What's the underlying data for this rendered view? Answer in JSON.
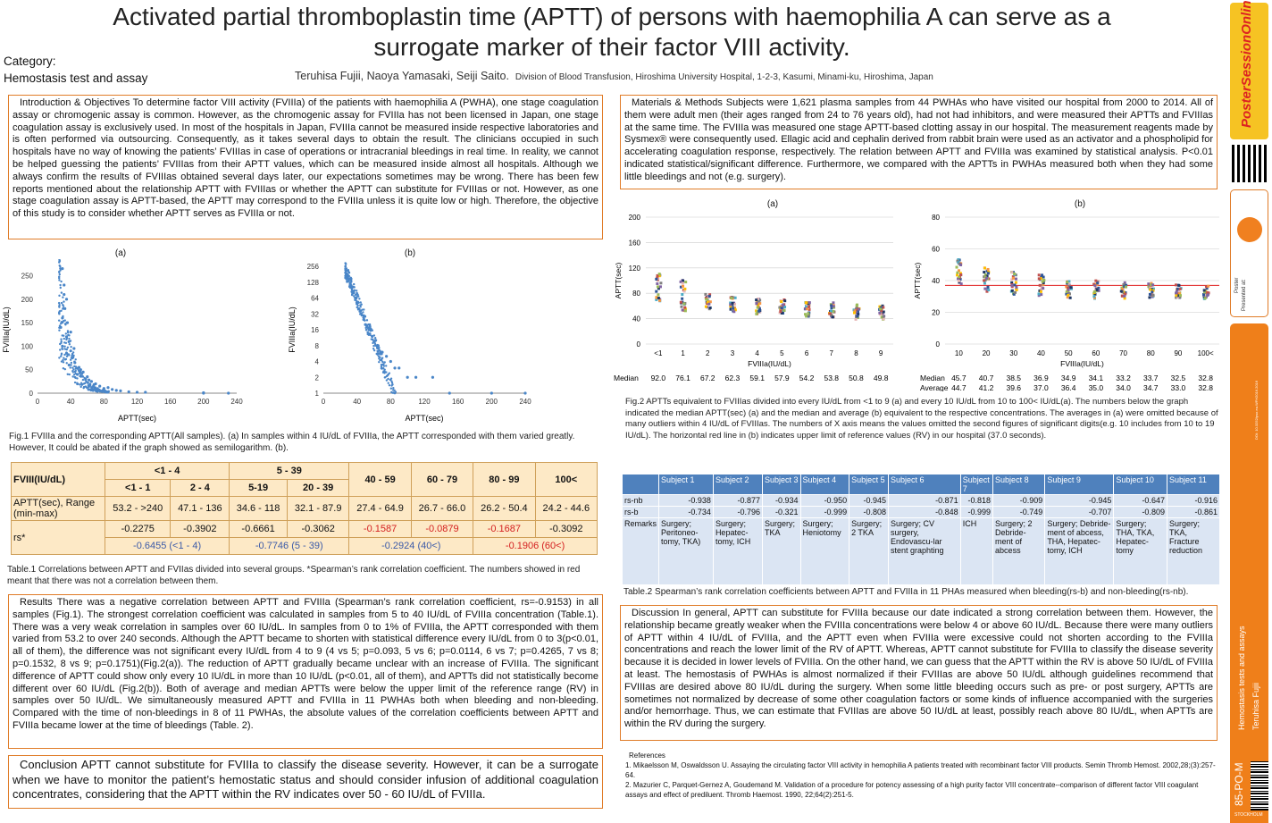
{
  "header": {
    "title": "Activated partial thromboplastin time (APTT) of persons with haemophilia A can serve as a surrogate marker of their factor VIII activity.",
    "authors": "Teruhisa Fujii, Naoya Yamasaki, Seiji Saito.",
    "affiliation": "Division of Blood Transfusion, Hiroshima University Hospital, 1-2-3, Kasumi, Minami-ku, Hiroshima, Japan",
    "category_label": "Category:",
    "category": "Hemostasis test and assay"
  },
  "sections": {
    "intro": "Introduction & Objectives   To determine factor VIII activity (FVIIIa) of the patients with haemophilia A (PWHA), one stage coagulation assay or chromogenic assay is common. However, as the chromogenic assay for FVIIIa has not been licensed in Japan, one stage coagulation assay is exclusively used. In most of the hospitals in Japan, FVIIIa cannot be measured inside respective laboratories and is often performed via outsourcing. Consequently, as it takes several days to obtain the result. The clinicians occupied in such hospitals have no way of knowing the patients’ FVIIIas in case of operations or intracranial bleedings in real time. In reality, we cannot be helped guessing the patients’ FVIIIas from their APTT values, which can be measured inside almost all hospitals. Although we always confirm the results of FVIIIas obtained several days later, our expectations sometimes may be wrong. There has been few reports mentioned about the relationship APTT with FVIIIas or whether the APTT can substitute for FVIIIas or not. However, as one stage coagulation assay is APTT-based, the APTT may correspond to the FVIIIa unless it is quite low or high. Therefore, the objective of this study is to consider whether APTT serves as FVIIIa or not.",
    "methods": "Materials & Methods   Subjects were 1,621 plasma samples from 44 PWHAs who have visited our hospital from 2000 to 2014. All of them were adult men (their ages ranged from 24 to 76 years old), had not had inhibitors, and were measured their APTTs and FVIIIas at the same time. The FVIIIa was measured one stage APTT-based clotting assay in our hospital. The measurement reagents made by Sysmex® were consequently used. Ellagic acid and cephalin derived from rabbit brain were used as an activator and a phospholipid for accelerating coagulation response, respectively. The relation between APTT and FVIIIa was examined by statistical analysis. P<0.01 indicated statistical/significant difference. Furthermore, we compared with the APTTs in PWHAs measured both when they had some little bleedings and not (e.g. surgery).",
    "results": "Results   There was a negative correlation between APTT and FVIIIa (Spearman’s rank correlation coefficient, rs=-0.9153) in all samples (Fig.1). The strongest correlation coefficient was calculated in samples from 5 to 40 IU/dL of FVIIIa concentration (Table.1). There was a very weak correlation in samples over 60 IU/dL. In samples from 0 to 1% of FVIIIa, the APTT corresponded with them varied from 53.2 to over 240 seconds. Although the APTT became to shorten with statistical difference every IU/dL from 0 to 3(p<0.01, all of them), the difference was not significant every IU/dL from 4 to 9 (4 vs 5; p=0.093, 5 vs 6; p=0.0114, 6 vs 7; p=0.4265, 7 vs 8; p=0.1532, 8 vs 9; p=0.1751)(Fig.2(a)). The reduction of APTT gradually became unclear with an increase of FVIIIa. The significant difference of APTT could show only every 10 IU/dL in more than 10 IU/dL (p<0.01, all of them), and APTTs did not statistically become different over 60 IU/dL (Fig.2(b)). Both of average and median APTTs were below the upper limit of the reference range (RV) in samples over 50 IU/dL. We simultaneously measured APTT and FVIIIa in 11 PWHAs both when bleeding and non-bleeding. Compared with the time of non-bleedings in 8 of 11 PWHAs, the absolute values of the correlation coefficients between APTT and FVIIIa became lower at the time of bleedings (Table. 2).",
    "conclusion": "Conclusion   APTT cannot substitute for FVIIIa to classify the disease severity. However, it can be a surrogate when we have to monitor the patient’s hemostatic status and should consider infusion of additional coagulation concentrates, considering that the APTT within the RV indicates over 50 - 60 IU/dL of FVIIIa.",
    "discussion": "Discussion   In general, APTT can substitute for FVIIIa because our date indicated a strong correlation between them. However, the relationship became greatly weaker when the FVIIIa concentrations were below 4 or above 60 IU/dL. Because there were many outliers of APTT within 4 IU/dL of FVIIIa, and the APTT even when FVIIIa were excessive could not shorten according to the FVIIIa concentrations and reach the lower limit of the RV of APTT. Whereas, APTT cannot substitute for FVIIIa to classify the disease severity because it is decided in lower levels of FVIIIa. On the other hand, we can guess that the APTT within the RV is above 50 IU/dL of FVIIIa at least. The hemostasis of PWHAs is almost normalized if their FVIIIas are above 50 IU/dL although guidelines recommend that FVIIIas are desired above 80 IU/dL during the surgery. When some little bleeding occurs such as pre- or post surgery, APTTs are sometimes not normalized by decrease of some other coagulation factors or some kinds of influence accompanied with the surgeries and/or hemorrhage. Thus, we can estimate that FVIIIas are above 50 IU/dL at least, possibly reach above 80 IU/dL, when APTTs are within the RV during the surgery."
  },
  "captions": {
    "fig1": "Fig.1   FVIIIa and the corresponding APTT(All samples). (a)  In samples within 4 IU/dL of FVIIIa, the APTT corresponded with them varied greatly. However, It could be abated if the graph showed as semilogarithm. (b).",
    "table1": "Table.1      Correlations between APTT and FVIIas divided into several groups. *Spearman’s rank correlation coefficient. The numbers showed in red meant that there was not a correlation between them.",
    "fig2": "Fig.2   APTTs equivalent to FVIIIas divided into every IU/dL from <1 to 9 (a) and every 10 IU/dL from 10 to 100< IU/dL(a). The numbers below the graph indicated the median APTT(sec) (a) and the median and average (b) equivalent to the respective concentrations. The averages in (a) were omitted because of many outliers within 4 IU/dL of FVIIIas. The numbers of X axis means the values omitted the second figures of significant digits(e.g. 10 includes from 10 to 19 IU/dL). The horizontal red line in (b) indicates upper limit of reference values (RV) in our hospital (37.0 seconds).",
    "table2": "Table.2  Spearman’s rank correlation coefficients between APTT and FVIIIa in 11 PHAs measured when bleeding(rs-b) and non-bleeding(rs-nb)."
  },
  "references": {
    "title": "References",
    "items": [
      "1.  Mikaelsson M, Oswaldsson U. Assaying the circulating factor VIII activity in hemophilia A patients treated with recombinant factor VIII products. Semin Thromb Hemost. 2002,28;(3):257-64.",
      "2.  Mazurier C, Parquet-Gernez A, Goudemand M. Validation of a procedure for potency assessing of a high purity factor VIII concentrate--comparison of different factor VIII coagulant assays and effect of prediluent. Thromb Haemost. 1990, 22;64(2):251-5."
    ]
  },
  "table1": {
    "header": [
      "FVIII(IU/dL)",
      "<1 - 4",
      "5 - 39",
      "40 - 59",
      "60 - 79",
      "80 - 99",
      "100<"
    ],
    "subheader": [
      "<1 - 1",
      "2 - 4",
      "5-19",
      "20 - 39"
    ],
    "range_label": "APTT(sec), Range (min-max)",
    "ranges": [
      "53.2 - >240",
      "47.1 - 136",
      "34.6 - 118",
      "32.1 - 87.9",
      "27.4 - 64.9",
      "26.7 - 66.0",
      "26.2 - 50.4",
      "24.2 - 44.6"
    ],
    "rs_label": "rs*",
    "rs": [
      "-0.2275",
      "-0.3902",
      "-0.6661",
      "-0.3062",
      "-0.1587",
      "-0.0879",
      "-0.1687",
      "-0.3092"
    ],
    "group_rs": [
      "-0.6455 (<1 - 4)",
      "-0.7746 (5 - 39)",
      "-0.2924 (40<)",
      "-0.1906 (60<)"
    ]
  },
  "table2": {
    "subjects": [
      "Subject 1",
      "Subject 2",
      "Subject 3",
      "Subject 4",
      "Subject 5",
      "Subject 6",
      "Subject 7",
      "Subject 8",
      "Subject 9",
      "Subject 10",
      "Subject 11"
    ],
    "rs_nb_label": "rs-nb",
    "rs_nb": [
      "-0.938",
      "-0.877",
      "-0.934",
      "-0.950",
      "-0.945",
      "-0.871",
      "-0.818",
      "-0.909",
      "-0.945",
      "-0.647",
      "-0.916"
    ],
    "rs_b_label": "rs-b",
    "rs_b": [
      "-0.734",
      "-0.796",
      "-0.321",
      "-0.999",
      "-0.808",
      "-0.848",
      "-0.999",
      "-0.749",
      "-0.707",
      "-0.809",
      "-0.861"
    ],
    "remarks_label": "Remarks",
    "remarks": [
      "Surgery; Peritoneo-tomy, TKA)",
      "Surgery; Hepatec-tomy, ICH",
      "Surgery; TKA",
      "Surgery; Heniotomy",
      "Surgery; 2 TKA",
      "Surgery; CV surgery, Endovascu-lar stent graphting",
      "ICH",
      "Surgery; 2 Debride-ment of abcess",
      "Surgery; Debride-ment of abcess, THA, Hepatec-tomy, ICH",
      "Surgery; THA, TKA, Hepatec-tomy",
      "Surgery; TKA, Fracture reduction"
    ]
  },
  "sidebar": {
    "logo": "PosterSessionOnline.com",
    "presented": "Presented at:",
    "poster": "Poster",
    "topic": "Hemostasis tests and assays",
    "author": "Teruhisa Fujii",
    "code": "85-PO-M",
    "doi": "DOI: 10.3252/pso.eu.WFH2016.2016",
    "footer": "STOCKHOLM"
  },
  "chart_data": [
    {
      "type": "scatter",
      "panel": "(a)",
      "xlabel": "APTT(sec)",
      "ylabel": "FVIIIa(IU/dL)",
      "xlim": [
        0,
        240
      ],
      "ylim": [
        0,
        270
      ],
      "xticks": [
        "0",
        "40",
        "80",
        "120",
        "160",
        "200",
        "240"
      ],
      "yticks": [
        "0",
        "50",
        "100",
        "150",
        "200",
        "250"
      ],
      "points": [
        [
          30,
          265
        ],
        [
          32,
          230
        ],
        [
          35,
          200
        ],
        [
          33,
          180
        ],
        [
          30,
          160
        ],
        [
          28,
          140
        ],
        [
          35,
          120
        ],
        [
          38,
          110
        ],
        [
          30,
          100
        ],
        [
          40,
          90
        ],
        [
          35,
          85
        ],
        [
          42,
          75
        ],
        [
          45,
          65
        ],
        [
          38,
          60
        ],
        [
          50,
          55
        ],
        [
          55,
          45
        ],
        [
          48,
          40
        ],
        [
          60,
          35
        ],
        [
          58,
          30
        ],
        [
          65,
          25
        ],
        [
          70,
          20
        ],
        [
          75,
          15
        ],
        [
          80,
          10
        ],
        [
          90,
          8
        ],
        [
          100,
          5
        ],
        [
          110,
          3
        ],
        [
          130,
          2
        ],
        [
          200,
          1
        ],
        [
          200,
          0
        ],
        [
          230,
          0
        ],
        [
          32,
          210
        ],
        [
          36,
          150
        ],
        [
          40,
          130
        ],
        [
          44,
          95
        ],
        [
          52,
          50
        ],
        [
          62,
          28
        ],
        [
          68,
          18
        ],
        [
          85,
          12
        ],
        [
          95,
          6
        ],
        [
          120,
          2
        ]
      ],
      "color": "#4a86c8"
    },
    {
      "type": "scatter",
      "panel": "(b)",
      "xlabel": "APTT(sec)",
      "ylabel": "FVIIIa(IU/dL)",
      "scale": "log2",
      "xlim": [
        0,
        240
      ],
      "ylim": [
        1,
        256
      ],
      "xticks": [
        "0",
        "40",
        "80",
        "120",
        "160",
        "200",
        "240"
      ],
      "yticks": [
        "1",
        "2",
        "4",
        "8",
        "16",
        "32",
        "64",
        "128",
        "256"
      ],
      "points": [
        [
          28,
          180
        ],
        [
          30,
          150
        ],
        [
          32,
          120
        ],
        [
          34,
          100
        ],
        [
          36,
          80
        ],
        [
          38,
          64
        ],
        [
          40,
          50
        ],
        [
          42,
          40
        ],
        [
          45,
          32
        ],
        [
          48,
          25
        ],
        [
          50,
          20
        ],
        [
          55,
          16
        ],
        [
          58,
          12
        ],
        [
          62,
          10
        ],
        [
          65,
          8
        ],
        [
          70,
          6
        ],
        [
          75,
          5
        ],
        [
          80,
          4
        ],
        [
          90,
          3
        ],
        [
          100,
          2
        ],
        [
          130,
          2
        ],
        [
          150,
          1
        ],
        [
          200,
          1
        ],
        [
          240,
          1
        ],
        [
          85,
          3
        ],
        [
          110,
          2
        ],
        [
          68,
          6
        ],
        [
          52,
          18
        ],
        [
          44,
          36
        ],
        [
          33,
          110
        ]
      ],
      "color": "#4a86c8"
    },
    {
      "type": "scatter",
      "panel": "(a)",
      "xlabel": "FVIIIa(IU/dL)",
      "ylabel": "APTT(sec)",
      "categories": [
        "<1",
        "1",
        "2",
        "3",
        "4",
        "5",
        "6",
        "7",
        "8",
        "9"
      ],
      "ylim": [
        0,
        200
      ],
      "yticks": [
        "0",
        "40",
        "80",
        "120",
        "160",
        "200"
      ],
      "median_label": "Median",
      "median": [
        "92.0",
        "76.1",
        "67.2",
        "62.3",
        "59.1",
        "57.9",
        "54.2",
        "53.8",
        "50.8",
        "49.8"
      ],
      "median_values": [
        92.0,
        76.1,
        67.2,
        62.3,
        59.1,
        57.9,
        54.2,
        53.8,
        50.8,
        49.8
      ]
    },
    {
      "type": "scatter",
      "panel": "(b)",
      "xlabel": "FVIIIa(IU/dL)",
      "ylabel": "APTT(sec)",
      "categories": [
        "10",
        "20",
        "30",
        "40",
        "50",
        "60",
        "70",
        "80",
        "90",
        "100<"
      ],
      "ylim": [
        0,
        80
      ],
      "yticks": [
        "0",
        "20",
        "40",
        "60",
        "80"
      ],
      "median_label": "Median",
      "average_label": "Average",
      "median": [
        "45.7",
        "40.7",
        "38.5",
        "36.9",
        "34.9",
        "34.1",
        "33.2",
        "33.7",
        "32.5",
        "32.8"
      ],
      "average": [
        "44.7",
        "41.2",
        "39.6",
        "37.0",
        "36.4",
        "35.0",
        "34.0",
        "34.7",
        "33.0",
        "32.8"
      ],
      "median_values": [
        45.7,
        40.7,
        38.5,
        36.9,
        34.9,
        34.1,
        33.2,
        33.7,
        32.5,
        32.8
      ],
      "reference_line": 37.0
    }
  ]
}
